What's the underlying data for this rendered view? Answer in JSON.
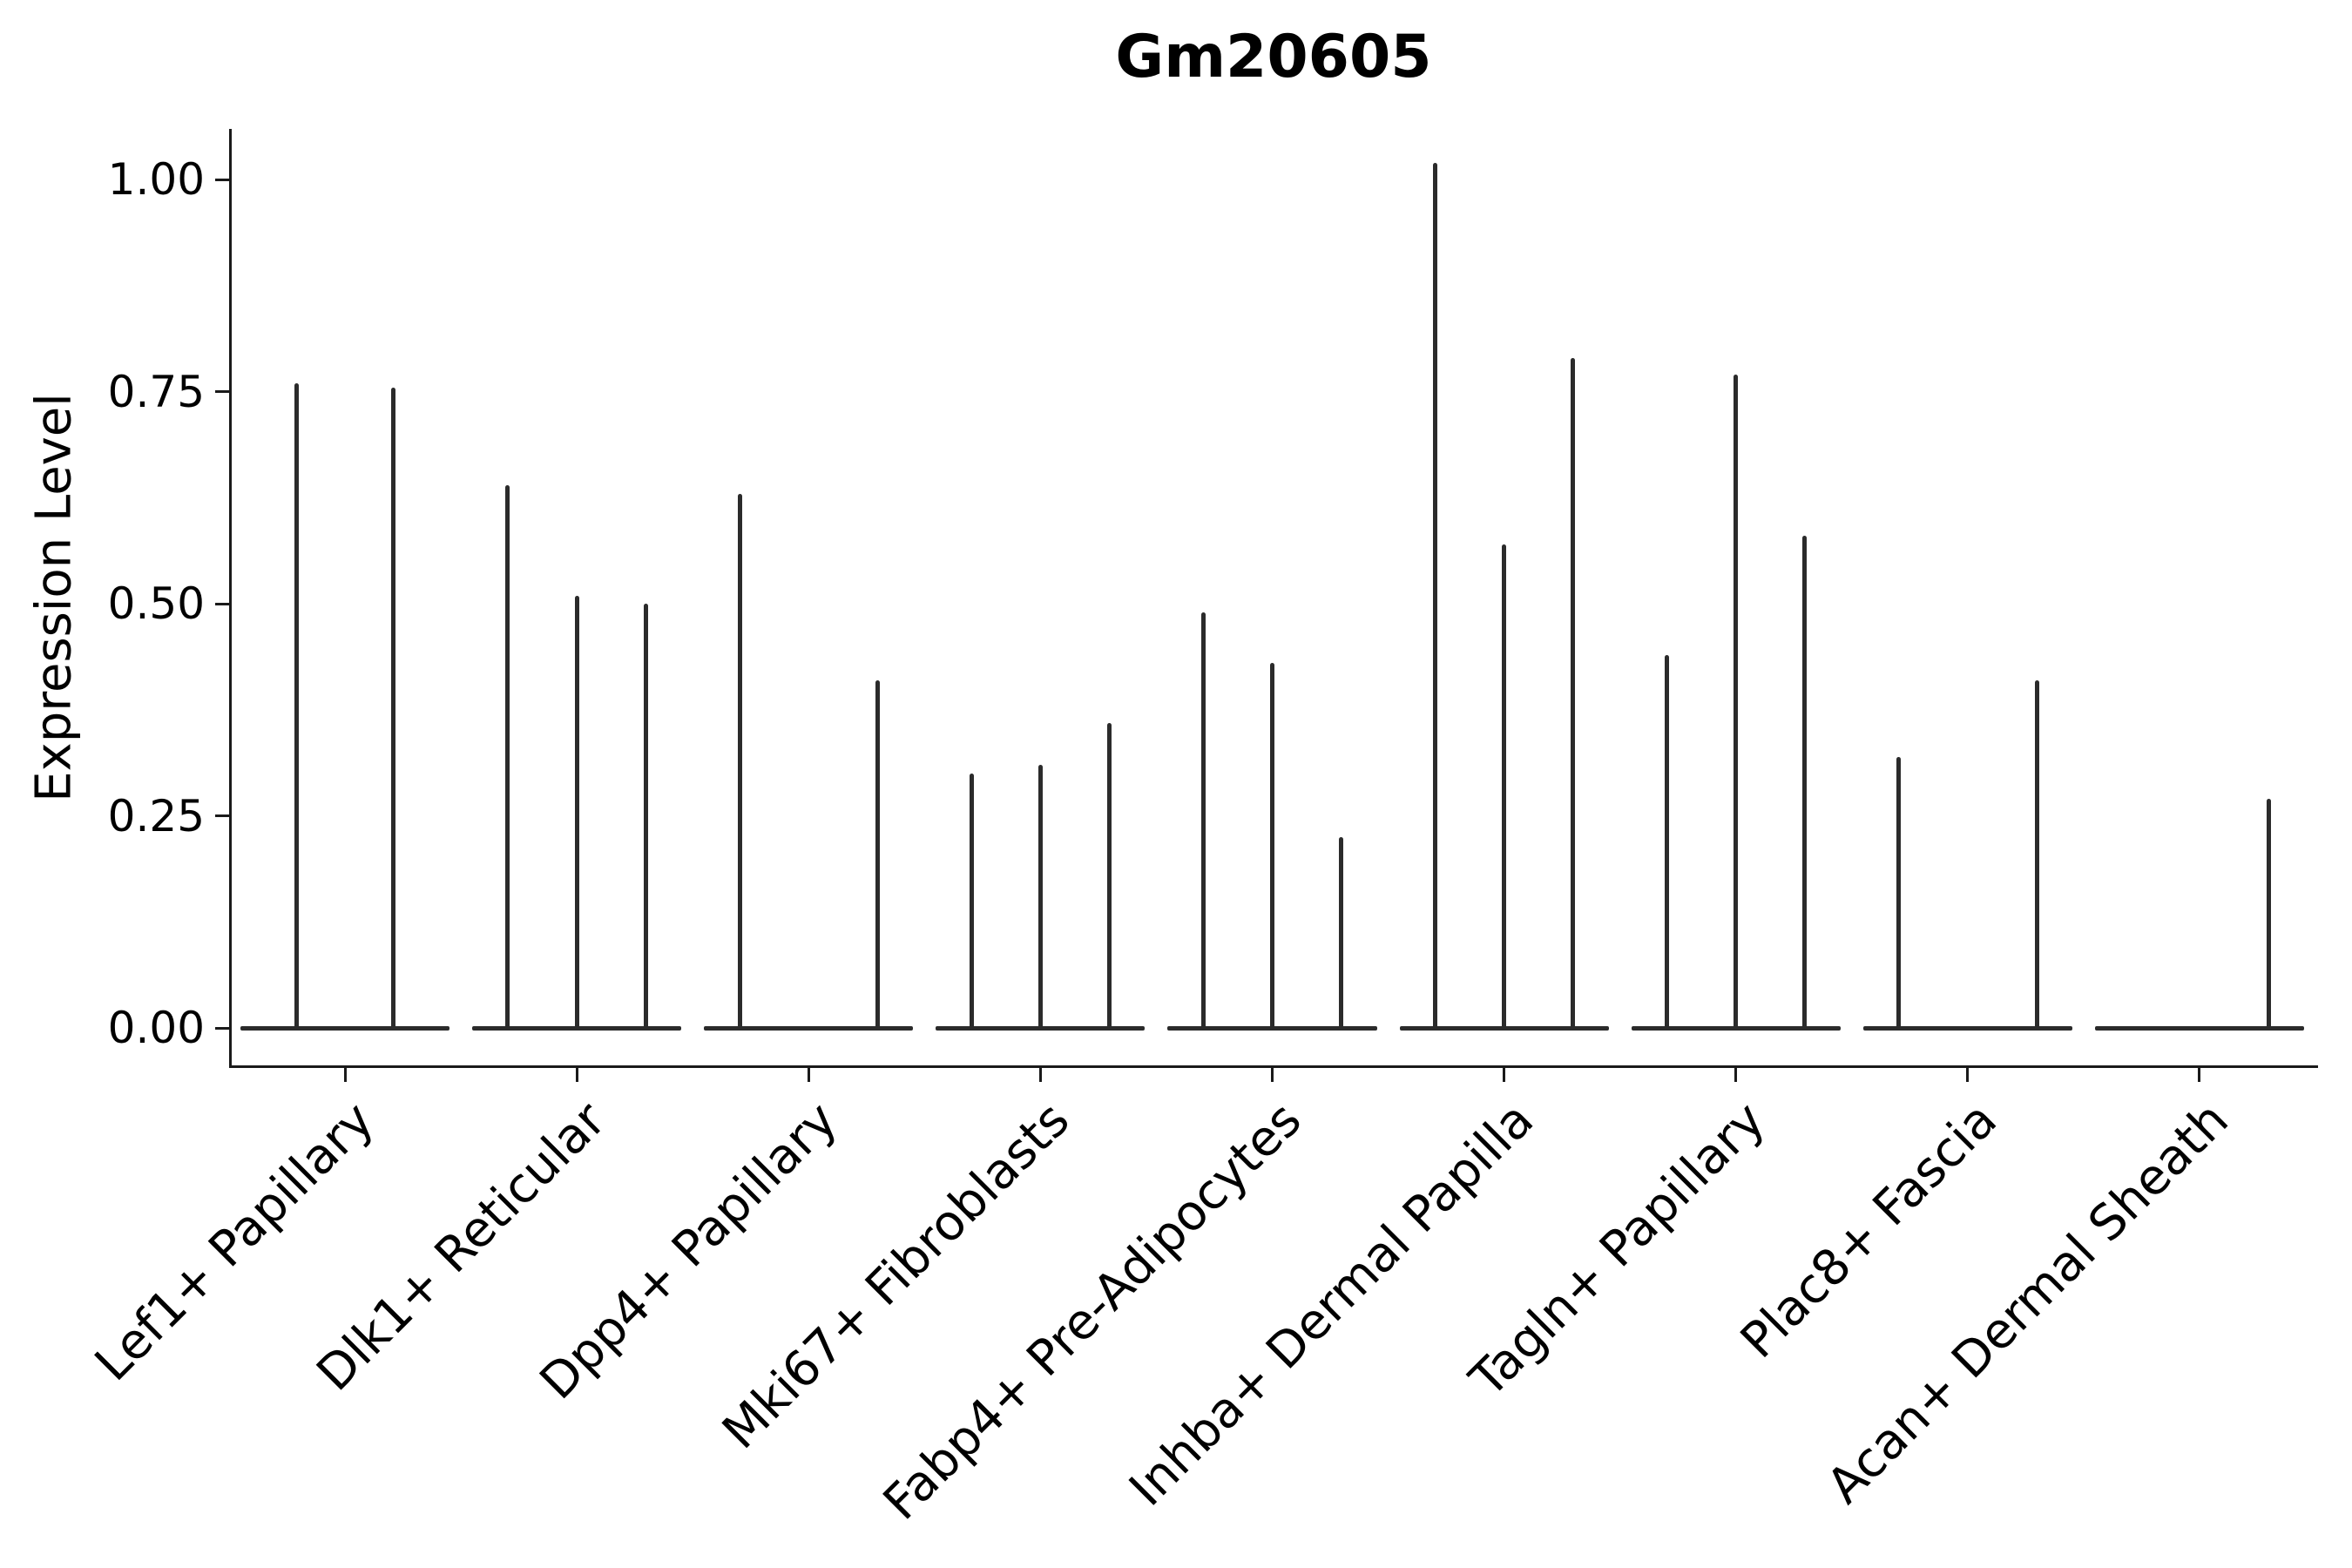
{
  "chart_data": {
    "type": "violin",
    "title": "Gm20605",
    "xlabel": "",
    "ylabel": "Expression Level",
    "ylim": [
      -0.044,
      1.06
    ],
    "ytick_values": [
      0,
      0.25,
      0.5,
      0.75,
      1.0
    ],
    "yticks": [
      "0.00",
      "0.25",
      "0.50",
      "0.75",
      "1.00"
    ],
    "grid": false,
    "legend": "none",
    "colors": {
      "violin": "#2b2b2b",
      "axis": "#1a1a1a",
      "text": "#000000"
    },
    "categories": [
      "Lef1+ Papillary",
      "Dlk1+ Reticular",
      "Dpp4+ Papillary",
      "Mki67+ Fibroblasts",
      "Fabp4+ Pre-Adipocytes",
      "Inhba+ Dermal Papilla",
      "Tagln+ Papillary",
      "Plac8+ Fascia",
      "Acan+ Dermal Sheath"
    ],
    "groups": [
      {
        "label": "Lef1+ Papillary",
        "violins": [
          {
            "pos": 0.27,
            "max": 0.76
          },
          {
            "pos": 0.73,
            "max": 0.755
          }
        ]
      },
      {
        "label": "Dlk1+ Reticular",
        "violins": [
          {
            "pos": 0.17,
            "max": 0.64
          },
          {
            "pos": 0.5,
            "max": 0.51
          },
          {
            "pos": 0.83,
            "max": 0.5
          }
        ]
      },
      {
        "label": "Dpp4+ Papillary",
        "violins": [
          {
            "pos": 0.17,
            "max": 0.63
          },
          {
            "pos": 0.5,
            "max": 0
          },
          {
            "pos": 0.83,
            "max": 0.41
          }
        ]
      },
      {
        "label": "Mki67+ Fibroblasts",
        "violins": [
          {
            "pos": 0.17,
            "max": 0.3
          },
          {
            "pos": 0.5,
            "max": 0.31
          },
          {
            "pos": 0.83,
            "max": 0.36
          }
        ]
      },
      {
        "label": "Fabp4+ Pre-Adipocytes",
        "violins": [
          {
            "pos": 0.17,
            "max": 0.49
          },
          {
            "pos": 0.5,
            "max": 0.43
          },
          {
            "pos": 0.83,
            "max": 0.225
          }
        ]
      },
      {
        "label": "Inhba+ Dermal Papilla",
        "violins": [
          {
            "pos": 0.17,
            "max": 1.02
          },
          {
            "pos": 0.5,
            "max": 0.57
          },
          {
            "pos": 0.83,
            "max": 0.79
          }
        ]
      },
      {
        "label": "Tagln+ Papillary",
        "violins": [
          {
            "pos": 0.17,
            "max": 0.44
          },
          {
            "pos": 0.5,
            "max": 0.77
          },
          {
            "pos": 0.83,
            "max": 0.58
          }
        ]
      },
      {
        "label": "Plac8+ Fascia",
        "violins": [
          {
            "pos": 0.17,
            "max": 0.32
          },
          {
            "pos": 0.5,
            "max": 0
          },
          {
            "pos": 0.83,
            "max": 0.41
          }
        ]
      },
      {
        "label": "Acan+ Dermal Sheath",
        "violins": [
          {
            "pos": 0.17,
            "max": 0
          },
          {
            "pos": 0.5,
            "max": 0
          },
          {
            "pos": 0.83,
            "max": 0.27
          }
        ]
      }
    ]
  }
}
